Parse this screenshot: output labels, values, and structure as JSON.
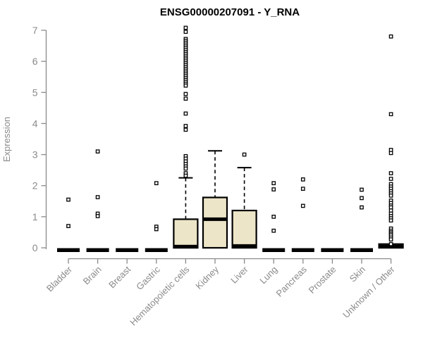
{
  "chart_data": {
    "type": "boxplot",
    "title": "ENSG00000207091 - Y_RNA",
    "ylabel": "Expression",
    "xlabel": "",
    "ylim": [
      0,
      7
    ],
    "yticks": [
      0,
      1,
      2,
      3,
      4,
      5,
      6,
      7
    ],
    "grid": false,
    "legend": "none",
    "categories": [
      "Bladder",
      "Brain",
      "Breast",
      "Gastric",
      "Hematopoietic cells",
      "Kidney",
      "Liver",
      "Lung",
      "Pancreas",
      "Prostate",
      "Skin",
      "Unknown / Other"
    ],
    "boxes": [
      {
        "category": "Bladder",
        "q1": 0,
        "median": 0,
        "q3": 0,
        "whisker_low": 0,
        "whisker_high": 0,
        "outliers": [
          1.55,
          0.7
        ]
      },
      {
        "category": "Brain",
        "q1": 0,
        "median": 0,
        "q3": 0,
        "whisker_low": 0,
        "whisker_high": 0,
        "outliers": [
          3.1,
          1.63,
          1.1,
          1.02
        ]
      },
      {
        "category": "Breast",
        "q1": 0,
        "median": 0,
        "q3": 0,
        "whisker_low": 0,
        "whisker_high": 0,
        "outliers": []
      },
      {
        "category": "Gastric",
        "q1": 0,
        "median": 0,
        "q3": 0,
        "whisker_low": 0,
        "whisker_high": 0,
        "outliers": [
          2.08,
          0.68,
          0.6
        ]
      },
      {
        "category": "Hematopoietic cells",
        "q1": 0,
        "median": 0.04,
        "q3": 0.92,
        "whisker_low": 0,
        "whisker_high": 2.25,
        "outliers": [
          7.08,
          6.95,
          6.72,
          6.66,
          6.6,
          6.54,
          6.48,
          6.42,
          6.36,
          6.3,
          6.24,
          6.18,
          6.12,
          6.06,
          6.0,
          5.94,
          5.88,
          5.82,
          5.76,
          5.7,
          5.64,
          5.58,
          5.52,
          5.46,
          5.4,
          5.34,
          5.28,
          5.22,
          4.95,
          4.8,
          4.32,
          3.92,
          3.8,
          2.95,
          2.87,
          2.78,
          2.7,
          2.62,
          2.55,
          2.4,
          2.32
        ]
      },
      {
        "category": "Kidney",
        "q1": 0,
        "median": 0.92,
        "q3": 1.62,
        "whisker_low": 0,
        "whisker_high": 3.12,
        "outliers": []
      },
      {
        "category": "Liver",
        "q1": 0,
        "median": 0.06,
        "q3": 1.2,
        "whisker_low": 0,
        "whisker_high": 2.58,
        "outliers": [
          3.0
        ]
      },
      {
        "category": "Lung",
        "q1": 0,
        "median": 0,
        "q3": 0,
        "whisker_low": 0,
        "whisker_high": 0,
        "outliers": [
          2.08,
          1.88,
          1.0,
          0.55
        ]
      },
      {
        "category": "Pancreas",
        "q1": 0,
        "median": 0,
        "q3": 0,
        "whisker_low": 0,
        "whisker_high": 0,
        "outliers": [
          2.2,
          1.9,
          1.35
        ]
      },
      {
        "category": "Prostate",
        "q1": 0,
        "median": 0,
        "q3": 0,
        "whisker_low": 0,
        "whisker_high": 0,
        "outliers": []
      },
      {
        "category": "Skin",
        "q1": 0,
        "median": 0,
        "q3": 0,
        "whisker_low": 0,
        "whisker_high": 0,
        "outliers": [
          1.87,
          1.6,
          1.3
        ]
      },
      {
        "category": "Unknown / Other",
        "q1": 0,
        "median": 0.04,
        "q3": 0.12,
        "whisker_low": 0,
        "whisker_high": 0.12,
        "outliers": [
          6.8,
          4.3,
          3.15,
          3.05,
          2.4,
          2.22,
          2.05,
          1.97,
          1.9,
          1.82,
          1.75,
          1.68,
          1.52,
          1.44,
          1.36,
          1.3,
          1.2,
          1.1,
          1.02,
          0.95,
          0.88,
          0.62,
          0.55,
          0.5,
          0.45,
          0.4,
          0.33,
          0.27,
          0.12
        ]
      }
    ],
    "colors": {
      "box_fill": "#ece5c8",
      "box_border": "#000000",
      "median": "#000000",
      "whisker": "#000000",
      "outlier_stroke": "#000000",
      "outlier_fill": "#ffffff",
      "axis": "#8a8a8a",
      "tick_text": "#8a8a8a",
      "title": "#000000",
      "background": "#ffffff"
    }
  }
}
